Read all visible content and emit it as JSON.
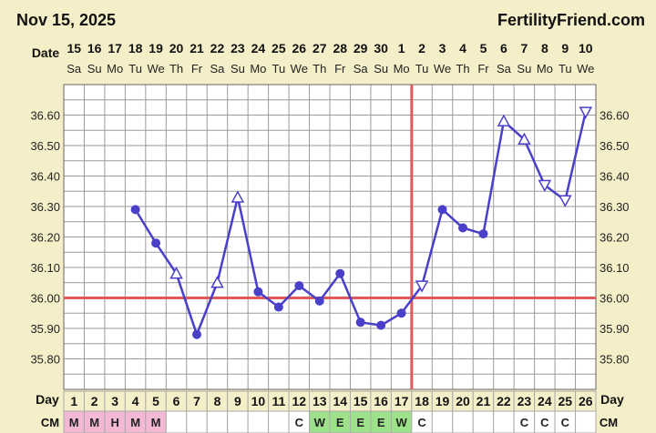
{
  "header": {
    "date": "Nov 15, 2025",
    "brand": "FertilityFriend.com"
  },
  "labels": {
    "date_row": "Date",
    "day_row": "Day",
    "cm_row": "CM"
  },
  "colors": {
    "line": "#4a3fc8",
    "coverline": "#e05a5a",
    "ovulation_line": "#e05a5a",
    "grid": "#9a9a9a",
    "menses": "#f2b8d4",
    "egg_white": "#9de28a",
    "chart_bg": "#ffffff",
    "page_bg": "#f5efc9"
  },
  "chart_data": {
    "type": "line",
    "x": [
      1,
      2,
      3,
      4,
      5,
      6,
      7,
      8,
      9,
      10,
      11,
      12,
      13,
      14,
      15,
      16,
      17,
      18,
      19,
      20,
      21,
      22,
      23,
      24,
      25,
      26
    ],
    "dates": [
      "15",
      "16",
      "17",
      "18",
      "19",
      "20",
      "21",
      "22",
      "23",
      "24",
      "25",
      "26",
      "27",
      "28",
      "29",
      "30",
      "1",
      "2",
      "3",
      "4",
      "5",
      "6",
      "7",
      "8",
      "9",
      "10"
    ],
    "weekdays": [
      "Sa",
      "Su",
      "Mo",
      "Tu",
      "We",
      "Th",
      "Fr",
      "Sa",
      "Su",
      "Mo",
      "Tu",
      "We",
      "Th",
      "Fr",
      "Sa",
      "Su",
      "Mo",
      "Tu",
      "We",
      "Th",
      "Fr",
      "Sa",
      "Su",
      "Mo",
      "Tu",
      "We"
    ],
    "temps": [
      null,
      null,
      null,
      36.29,
      36.18,
      36.08,
      35.88,
      36.05,
      36.33,
      36.02,
      35.97,
      36.04,
      35.99,
      36.08,
      35.92,
      35.91,
      35.95,
      36.04,
      36.29,
      36.23,
      36.21,
      36.58,
      36.52,
      36.37,
      36.32,
      36.61
    ],
    "markers": [
      null,
      null,
      null,
      "dot",
      "dot",
      "tri-up",
      "dot",
      "tri-up",
      "tri-up",
      "dot",
      "dot",
      "dot",
      "dot",
      "dot",
      "dot",
      "dot",
      "dot",
      "tri-down",
      "dot",
      "dot",
      "dot",
      "tri-up",
      "tri-up",
      "tri-down",
      "tri-down",
      "tri-down"
    ],
    "coverline": 36.0,
    "ovulation_day": 17,
    "yticks": [
      "36.60",
      "36.50",
      "36.40",
      "36.30",
      "36.20",
      "36.10",
      "36.00",
      "35.90",
      "35.80"
    ],
    "ylim": [
      35.7,
      36.7
    ],
    "cm": [
      "M",
      "M",
      "H",
      "M",
      "M",
      "",
      "",
      "",
      "",
      "",
      "",
      "C",
      "W",
      "E",
      "E",
      "E",
      "W",
      "C",
      "",
      "",
      "",
      "",
      "C",
      "C",
      "C",
      ""
    ],
    "grid": true
  }
}
